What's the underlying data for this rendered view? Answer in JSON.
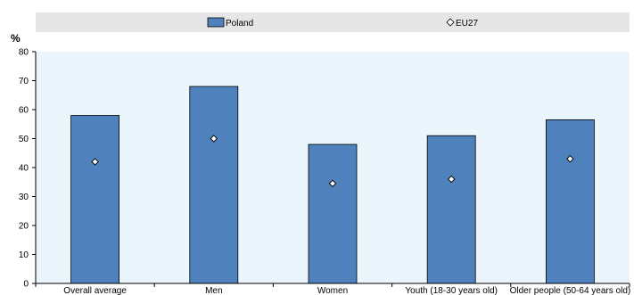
{
  "chart_data": {
    "type": "bar",
    "categories": [
      "Overall average",
      "Men",
      "Women",
      "Youth (18-30 years old)",
      "Older people (50-64 years old)"
    ],
    "series": [
      {
        "name": "Poland",
        "kind": "bar",
        "values": [
          58,
          68,
          48,
          51,
          56.5
        ]
      },
      {
        "name": "EU27",
        "kind": "marker",
        "values": [
          42,
          50,
          34.5,
          36,
          43
        ]
      }
    ],
    "ylabel": "%",
    "ylim": [
      0,
      80
    ],
    "yticks": [
      0,
      10,
      20,
      30,
      40,
      50,
      60,
      70,
      80
    ],
    "legend": "top",
    "grid": false,
    "colors": {
      "bar": "#4f81bd",
      "bar_edge": "#000000",
      "marker_fill": "#ffffff",
      "marker_edge": "#000000",
      "plot_bg": "#eaf6fb",
      "legend_bg": "#e6e6e6"
    }
  }
}
